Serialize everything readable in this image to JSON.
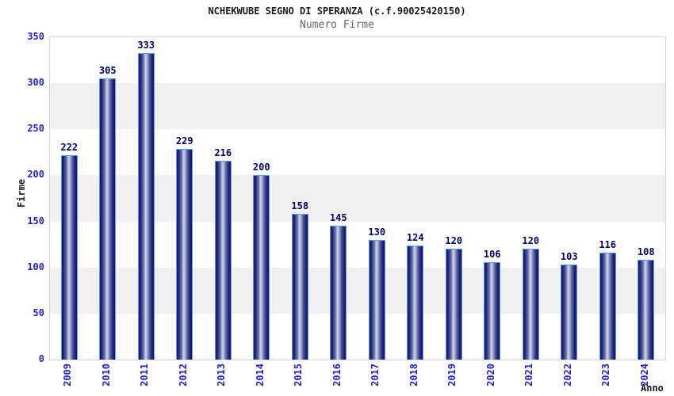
{
  "header": {
    "title": "NCHEKWUBE SEGNO DI SPERANZA (c.f.90025420150)",
    "subtitle": "Numero Firme"
  },
  "chart_data": {
    "type": "bar",
    "title": "NCHEKWUBE SEGNO DI SPERANZA (c.f.90025420150)",
    "subtitle": "Numero Firme",
    "categories": [
      "2009",
      "2010",
      "2011",
      "2012",
      "2013",
      "2014",
      "2015",
      "2016",
      "2017",
      "2018",
      "2019",
      "2020",
      "2021",
      "2022",
      "2023",
      "2024"
    ],
    "values": [
      222,
      305,
      333,
      229,
      216,
      200,
      158,
      145,
      130,
      124,
      120,
      106,
      120,
      103,
      116,
      108
    ],
    "xlabel": "Anno",
    "ylabel": "Firme",
    "ylim": [
      0,
      350
    ],
    "ytick_step": 50,
    "grid": "alternating horizontal bands every 50 units, white and light gray",
    "legend": "none",
    "bar_labels_shown": true
  },
  "colors": {
    "band_gray": "#f0f0f0",
    "band_white": "#ffffff",
    "axis_tick_text": "#2222cc",
    "bar_value_text": "#000066",
    "bar_border": "#55a0f0",
    "bar_dark": "#16166b",
    "bar_highlight": "#c9cfe6",
    "plot_border": "#d4d4d4",
    "title_text": "#1a1a1a",
    "subtitle_text": "#666666"
  }
}
